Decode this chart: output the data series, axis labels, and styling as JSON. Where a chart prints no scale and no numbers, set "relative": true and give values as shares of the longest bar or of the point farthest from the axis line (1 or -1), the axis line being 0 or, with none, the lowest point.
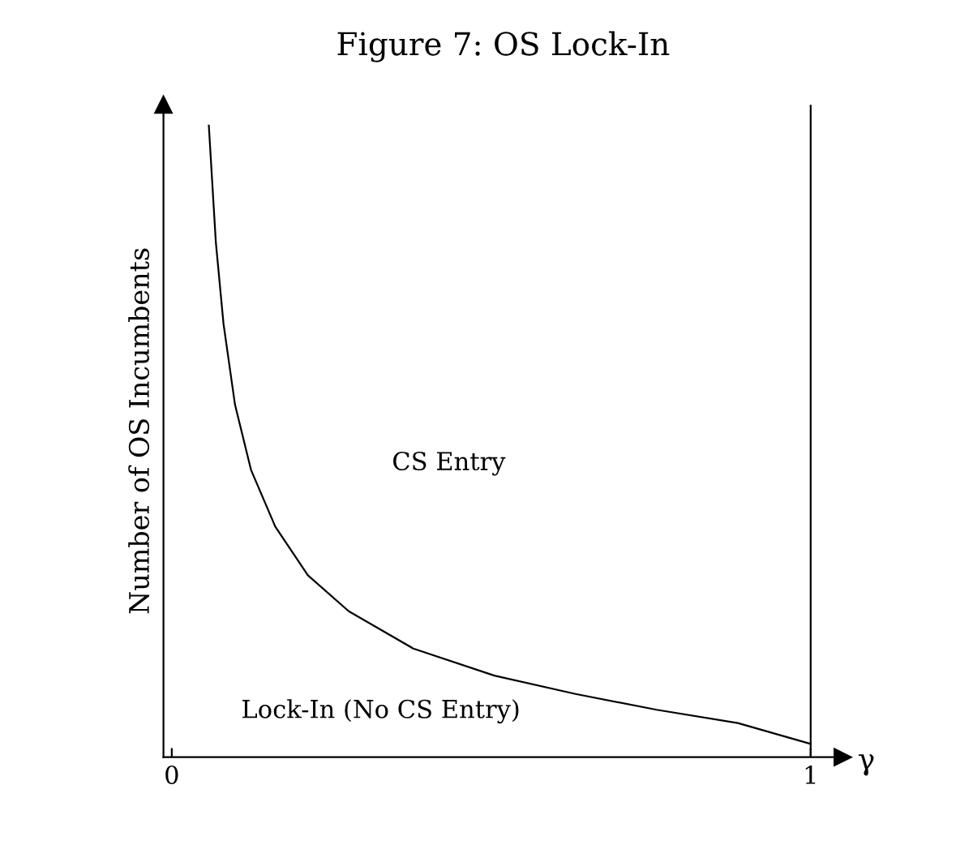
{
  "chart_data": {
    "type": "line",
    "title": "Figure 7: OS Lock-In",
    "xlabel": "γ",
    "ylabel": "Number of OS Incumbents",
    "relative": true,
    "xlim": [
      -0.013,
      1.05
    ],
    "xticks": [
      0,
      1
    ],
    "grid": false,
    "marker": "none",
    "line_style": "solid",
    "series": [
      {
        "color": "#000000",
        "x": [
          0.058,
          0.069,
          0.081,
          0.099,
          0.124,
          0.162,
          0.213,
          0.277,
          0.378,
          0.505,
          0.632,
          0.759,
          0.886,
          1.0
        ],
        "values": [
          1.0,
          0.815,
          0.686,
          0.558,
          0.455,
          0.365,
          0.288,
          0.231,
          0.172,
          0.129,
          0.1,
          0.075,
          0.054,
          0.021
        ]
      }
    ],
    "ref_lines": [
      {
        "axis": "x",
        "value": 1,
        "color": "#000000",
        "line_style": "solid"
      }
    ],
    "annotations": [
      "CS Entry",
      "Lock-In (No CS Entry)"
    ]
  }
}
